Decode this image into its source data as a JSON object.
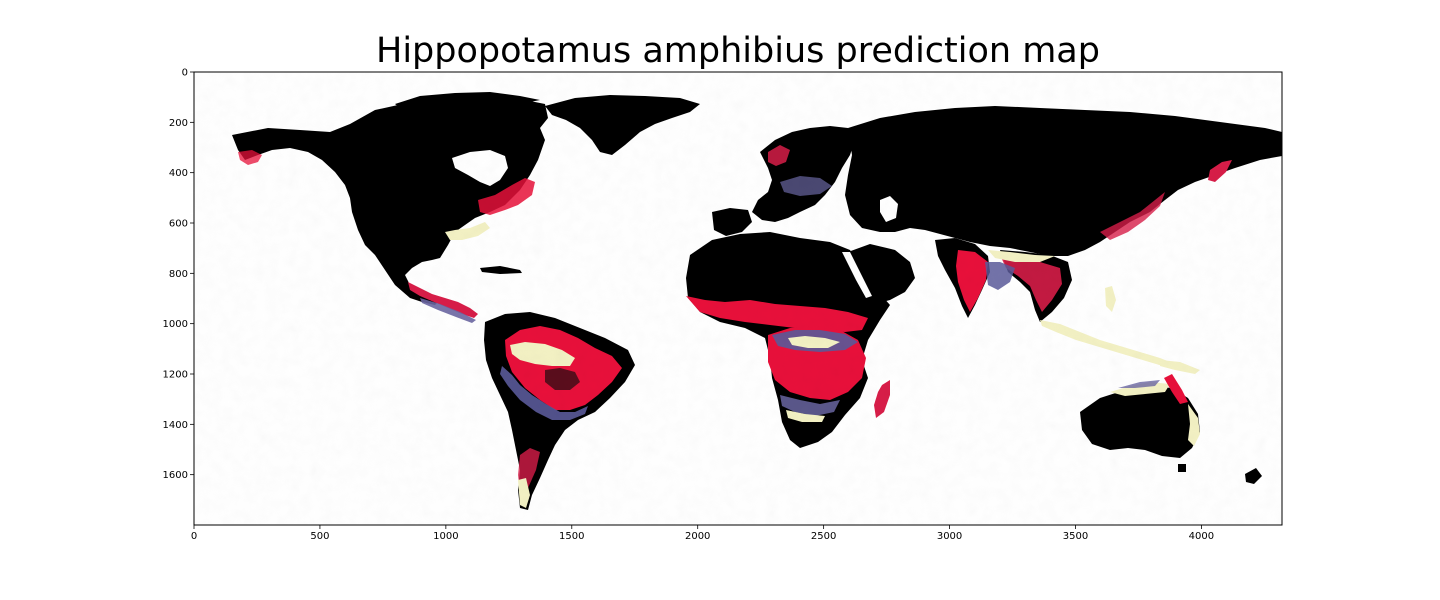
{
  "title": "Hippopotamus amphibius prediction map",
  "colors": {
    "land_low": "#000000",
    "high": "#e8103a",
    "medium": "#5a5a9a",
    "low": "#f3f1c4",
    "background": "#ffffff"
  },
  "chart_data": {
    "type": "heatmap",
    "title": "Hippopotamus amphibius prediction map",
    "xlabel": "",
    "ylabel": "",
    "xlim": [
      0,
      4320
    ],
    "ylim": [
      1800,
      0
    ],
    "x_ticks": [
      "0",
      "500",
      "1000",
      "1500",
      "2000",
      "2500",
      "3000",
      "3500",
      "4000"
    ],
    "y_ticks": [
      "0",
      "200",
      "400",
      "600",
      "800",
      "1000",
      "1200",
      "1400",
      "1600"
    ],
    "x_tick_values": [
      0,
      500,
      1000,
      1500,
      2000,
      2500,
      3000,
      3500,
      4000
    ],
    "y_tick_values": [
      0,
      200,
      400,
      600,
      800,
      1000,
      1200,
      1400,
      1600
    ],
    "grid": false,
    "legend": "none",
    "content": "global raster prediction map; land in black, predicted habitat suitability in red, purple and pale yellow shades, ocean white"
  }
}
